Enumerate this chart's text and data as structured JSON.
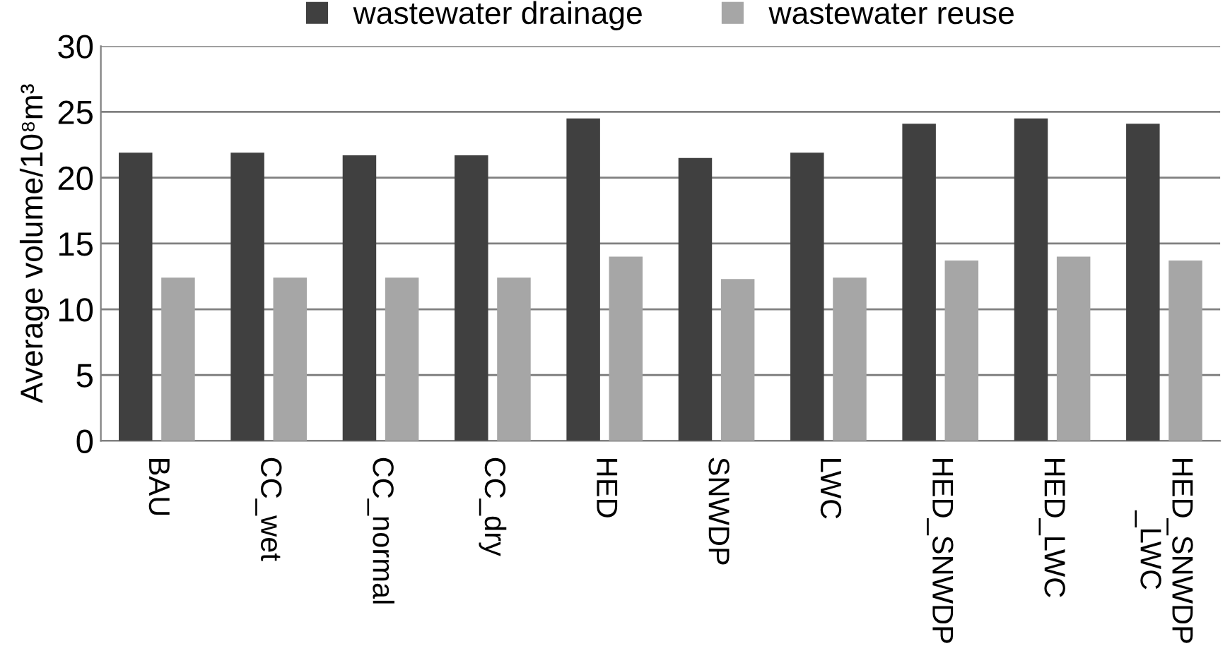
{
  "chart_data": {
    "type": "bar",
    "ylabel": "Average volume/10⁸m³",
    "categories": [
      "BAU",
      "CC_wet",
      "CC_normal",
      "CC_dry",
      "HED",
      "SNWDP",
      "LWC",
      "HED_SNWDP",
      "HED_LWC",
      "HED_SNWDP\n_LWC"
    ],
    "series": [
      {
        "name": "wastewater drainage",
        "color": "#404040",
        "values": [
          21.9,
          21.9,
          21.7,
          21.7,
          24.5,
          21.5,
          21.9,
          24.1,
          24.5,
          24.1
        ]
      },
      {
        "name": "wastewater reuse",
        "color": "#a6a6a6",
        "values": [
          12.4,
          12.4,
          12.4,
          12.4,
          14.0,
          12.3,
          12.4,
          13.7,
          14.0,
          13.7
        ]
      }
    ],
    "ylim": [
      0,
      30
    ],
    "yticks": [
      0,
      5,
      10,
      15,
      20,
      25,
      30
    ],
    "grid": "y",
    "legend": "top"
  }
}
